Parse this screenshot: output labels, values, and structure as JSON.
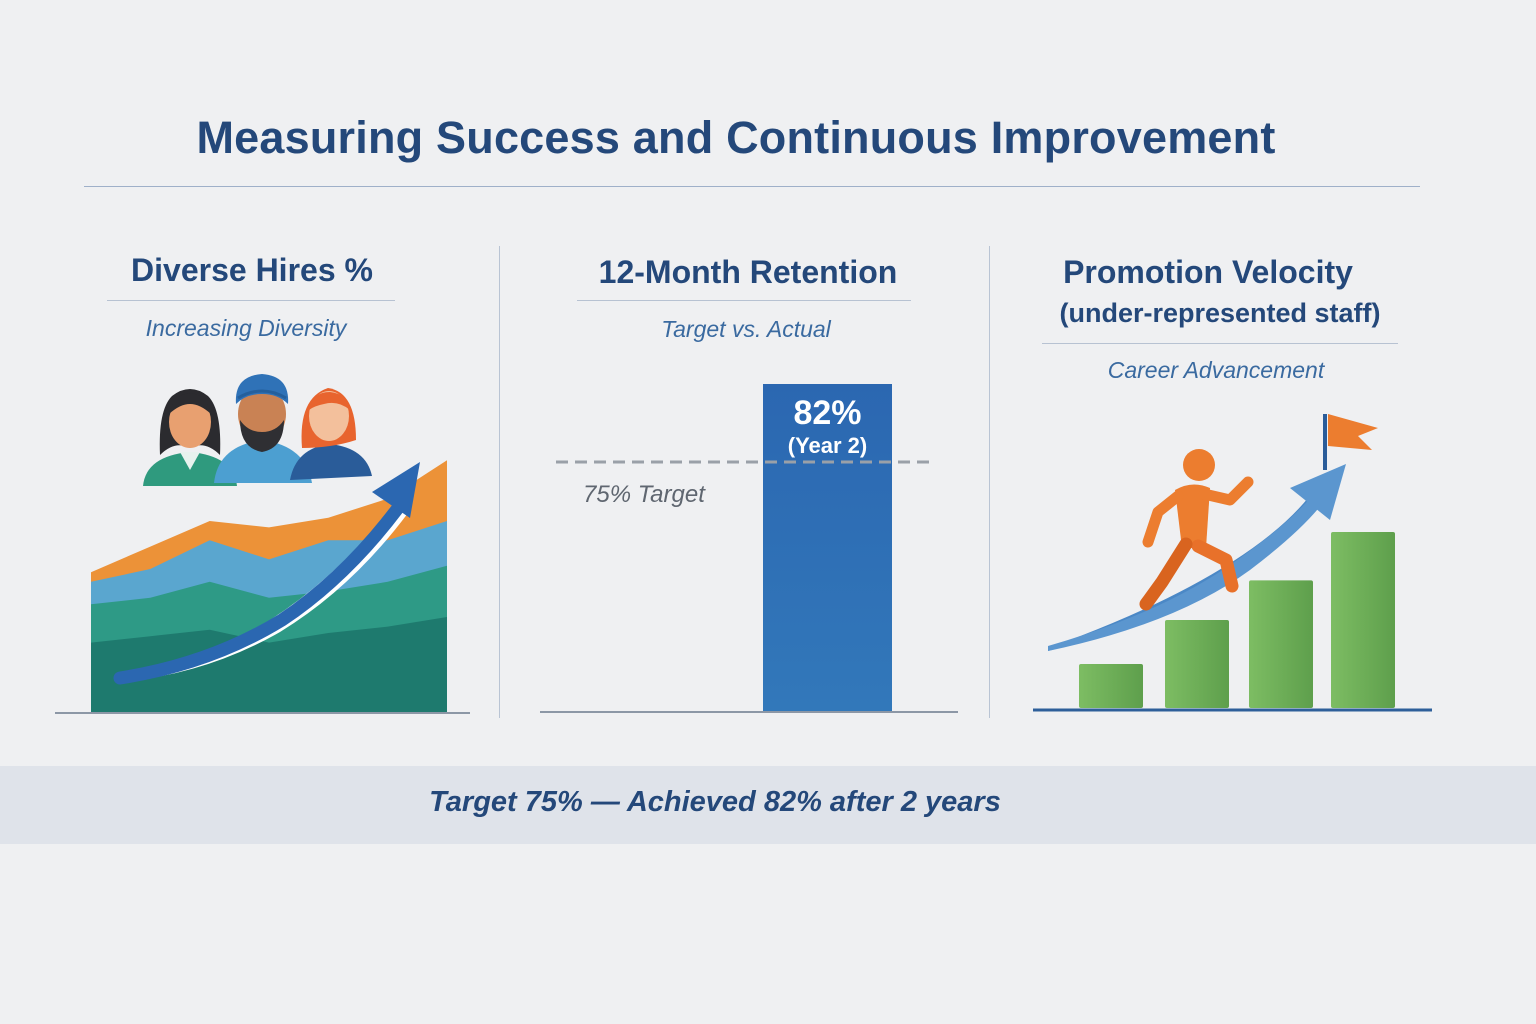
{
  "title": "Measuring Success and Continuous Improvement",
  "footer": "Target 75% — Achieved 82% after 2 years",
  "colors": {
    "navy": "#24487a",
    "blue": "#2f72b7",
    "orange": "#ec8c3a",
    "green": "#6aae55",
    "teal": "#2e8f7c",
    "sky": "#5aa6cf"
  },
  "panels": {
    "diverse_hires": {
      "title": "Diverse Hires %",
      "caption": "Increasing Diversity",
      "icons": [
        "person-icon",
        "person-turban-icon",
        "person-icon",
        "trend-arrow-icon"
      ]
    },
    "retention": {
      "title": "12-Month Retention",
      "caption": "Target vs. Actual",
      "bar_value_label": "82%",
      "bar_period_label": "(Year 2)",
      "target_label": "75% Target"
    },
    "promotion": {
      "title": "Promotion Velocity",
      "subtitle": "(under-represented staff)",
      "caption": "Career Advancement",
      "icons": [
        "climbing-person-icon",
        "flag-icon",
        "trend-arrow-icon"
      ]
    }
  },
  "chart_data": [
    {
      "type": "area",
      "title": "Diverse Hires %",
      "series": [
        {
          "values": [
            22,
            24,
            26,
            22,
            25,
            27,
            30
          ]
        },
        {
          "values": [
            12,
            12,
            15,
            14,
            13,
            14,
            16
          ]
        },
        {
          "values": [
            7,
            9,
            13,
            12,
            16,
            13,
            14
          ]
        },
        {
          "values": [
            3,
            7,
            6,
            10,
            7,
            13,
            19
          ]
        }
      ]
    },
    {
      "type": "bar",
      "title": "12-Month Retention",
      "categories": [
        "Year 2"
      ],
      "values": [
        82
      ],
      "target": 75,
      "ylim": [
        0,
        100
      ]
    },
    {
      "type": "bar",
      "title": "Promotion Velocity",
      "values": [
        2,
        4,
        5.8,
        8
      ],
      "ylim": [
        0,
        10
      ]
    }
  ]
}
